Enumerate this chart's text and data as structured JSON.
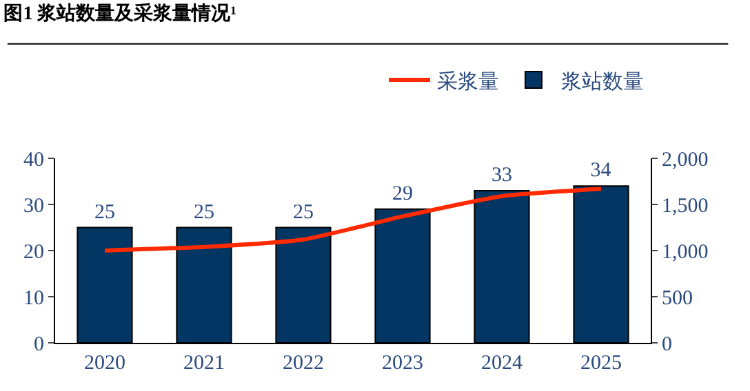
{
  "chart_data": {
    "type": "bar",
    "title": "图1 浆站数量及采浆量情况¹",
    "categories": [
      "2020",
      "2021",
      "2022",
      "2023",
      "2024",
      "2025"
    ],
    "series": [
      {
        "name": "采浆量",
        "type": "line",
        "axis": "y2",
        "color": "#ff2a00",
        "values": [
          1000,
          1040,
          1120,
          1370,
          1590,
          1670
        ]
      },
      {
        "name": "浆站数量",
        "color": "#033663",
        "values": [
          25,
          25,
          25,
          29,
          33,
          34
        ],
        "value_labels": [
          "25",
          "25",
          "25",
          "29",
          "33",
          "34"
        ]
      }
    ],
    "ylim": [
      0,
      40
    ],
    "yticks": [
      0,
      10,
      20,
      30,
      40
    ],
    "y2lim": [
      0,
      2000
    ],
    "y2ticks": [
      0,
      {
        "value": 500,
        "label": "500"
      },
      {
        "value": 1000,
        "label": "1,000"
      },
      {
        "value": 1500,
        "label": "1,500"
      },
      {
        "value": 2000,
        "label": "2,000"
      }
    ],
    "legend": "top right"
  }
}
